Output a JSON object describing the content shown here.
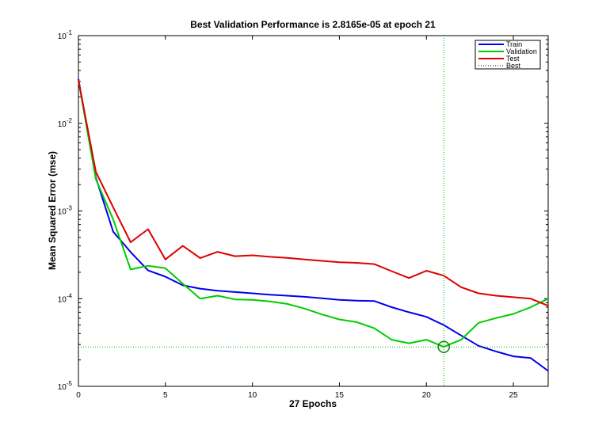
{
  "chart_data": {
    "type": "line",
    "title": "Best Validation Performance is 2.8165e-05 at epoch 21",
    "xlabel": "27 Epochs",
    "ylabel": "Mean Squared Error  (mse)",
    "xlim": [
      0,
      27
    ],
    "ylim": [
      1e-05,
      0.1
    ],
    "yscale": "log",
    "grid": false,
    "legend_position": "top-right",
    "x_ticks": [
      0,
      5,
      10,
      15,
      20,
      25
    ],
    "y_ticks": [
      {
        "base": "10",
        "exp": "-1",
        "value": 0.1
      },
      {
        "base": "10",
        "exp": "-2",
        "value": 0.01
      },
      {
        "base": "10",
        "exp": "-3",
        "value": 0.001
      },
      {
        "base": "10",
        "exp": "-4",
        "value": 0.0001
      },
      {
        "base": "10",
        "exp": "-5",
        "value": 1e-05
      }
    ],
    "x": [
      0,
      1,
      2,
      3,
      4,
      5,
      6,
      7,
      8,
      9,
      10,
      11,
      12,
      13,
      14,
      15,
      16,
      17,
      18,
      19,
      20,
      21,
      22,
      23,
      24,
      25,
      26,
      27
    ],
    "series": [
      {
        "name": "Train",
        "color": "#0000ee",
        "values": [
          0.032,
          0.0024,
          0.00058,
          0.00034,
          0.00021,
          0.000178,
          0.000142,
          0.00013,
          0.000123,
          0.000119,
          0.000115,
          0.000111,
          0.000108,
          0.000105,
          0.000101,
          9.7e-05,
          9.5e-05,
          9.4e-05,
          8e-05,
          7e-05,
          6.2e-05,
          5e-05,
          3.8e-05,
          2.9e-05,
          2.5e-05,
          2.2e-05,
          2.1e-05,
          1.5e-05
        ]
      },
      {
        "name": "Validation",
        "color": "#00cc00",
        "values": [
          0.031,
          0.0023,
          0.0008,
          0.000215,
          0.000237,
          0.000223,
          0.000148,
          0.0001,
          0.000108,
          9.8e-05,
          9.7e-05,
          9.3e-05,
          8.7e-05,
          7.7e-05,
          6.6e-05,
          5.8e-05,
          5.4e-05,
          4.6e-05,
          3.4e-05,
          3.1e-05,
          3.4e-05,
          2.82e-05,
          3.4e-05,
          5.3e-05,
          6e-05,
          6.7e-05,
          8e-05,
          0.0001
        ]
      },
      {
        "name": "Test",
        "color": "#dd0000",
        "values": [
          0.031,
          0.0028,
          0.0011,
          0.00044,
          0.00062,
          0.00028,
          0.0004,
          0.00029,
          0.000342,
          0.000305,
          0.000312,
          0.0003,
          0.000292,
          0.00028,
          0.00027,
          0.00026,
          0.000256,
          0.000248,
          0.000206,
          0.000172,
          0.000208,
          0.000183,
          0.000135,
          0.000115,
          0.000108,
          0.000104,
          0.0001,
          8.3e-05
        ]
      }
    ],
    "best": {
      "name": "Best",
      "epoch": 21,
      "value": 2.8165e-05,
      "line_style": "dotted",
      "color": "#00aa00",
      "marker_color": "#008800"
    }
  }
}
